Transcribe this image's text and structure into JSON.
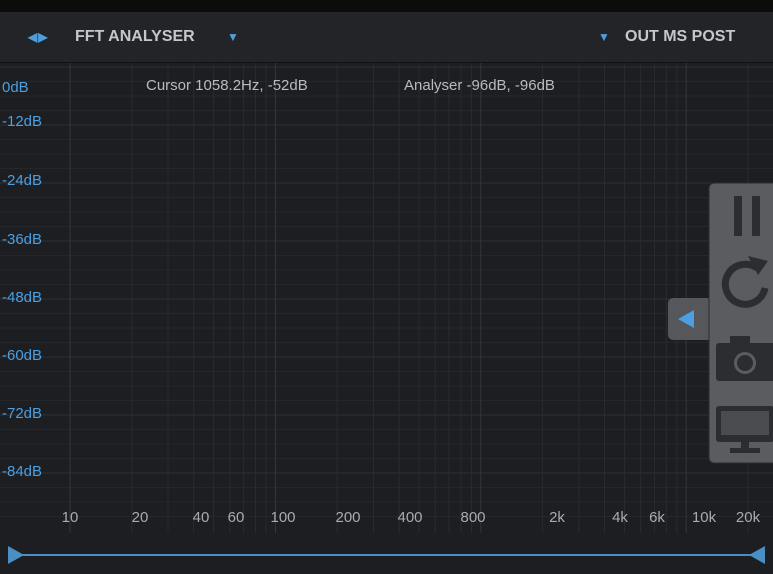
{
  "header": {
    "title": "FFT ANALYSER",
    "output": "OUT MS POST"
  },
  "readout": {
    "cursor": "Cursor 1058.2Hz, -52dB",
    "analyser": "Analyser -96dB, -96dB"
  },
  "y_axis": {
    "labels": [
      "0dB",
      "-12dB",
      "-24dB",
      "-36dB",
      "-48dB",
      "-60dB",
      "-72dB",
      "-84dB"
    ]
  },
  "x_axis": {
    "labels": [
      "10",
      "20",
      "40",
      "60",
      "100",
      "200",
      "400",
      "800",
      "2k",
      "4k",
      "6k",
      "10k",
      "20k"
    ]
  }
}
